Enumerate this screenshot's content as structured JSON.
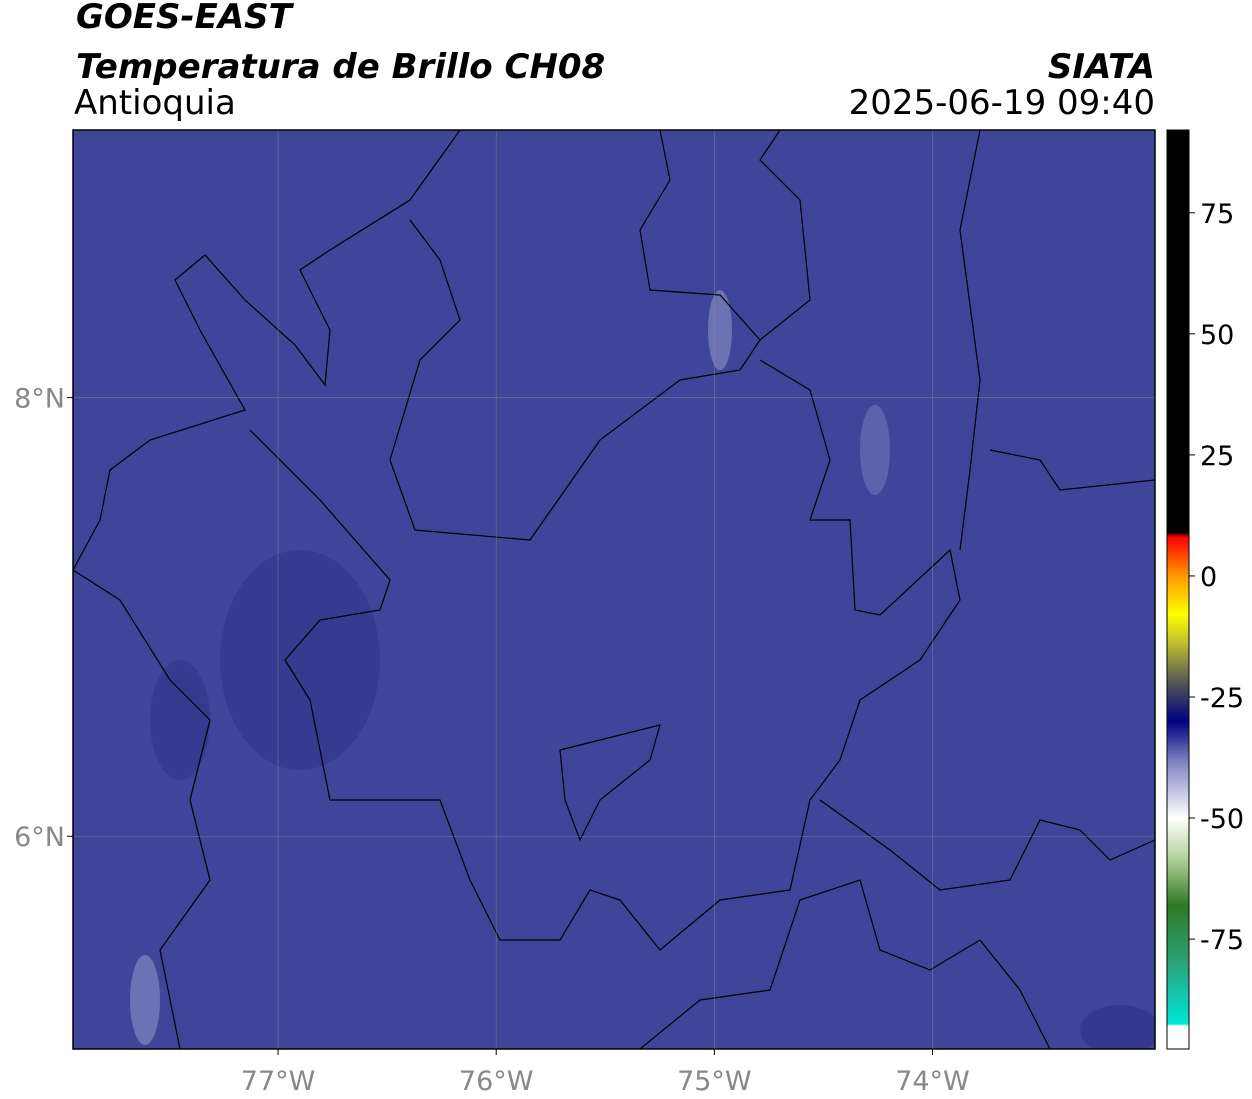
{
  "header": {
    "title": "GOES-EAST",
    "subtitle": "Temperatura de Brillo CH08",
    "region": "Antioquia",
    "source": "SIATA",
    "datetime": "2025-06-19 09:40"
  },
  "map": {
    "lonlim": [
      -77.94,
      -72.98
    ],
    "latlim": [
      5.03,
      9.22
    ],
    "background": "#3f4699",
    "lonticks": [
      {
        "value": -77,
        "label": "77°W"
      },
      {
        "value": -76,
        "label": "76°W"
      },
      {
        "value": -75,
        "label": "75°W"
      },
      {
        "value": -74,
        "label": "74°W"
      }
    ],
    "latticks": [
      {
        "value": 8,
        "label": "8°N"
      },
      {
        "value": 6,
        "label": "6°N"
      }
    ],
    "grid": true
  },
  "colorbar": {
    "lim": [
      -97.7,
      92.1
    ],
    "ticks": [
      75,
      50,
      25,
      0,
      -25,
      -50,
      -75
    ],
    "colormap": [
      {
        "value": -97.7,
        "color": "#ffffff"
      },
      {
        "value": -93,
        "color": "#ffffff"
      },
      {
        "value": -92.5,
        "color": "#00e5d8"
      },
      {
        "value": -80,
        "color": "#2aa37a"
      },
      {
        "value": -68,
        "color": "#2f7a22"
      },
      {
        "value": -58,
        "color": "#b8d4a0"
      },
      {
        "value": -50,
        "color": "#ffffff"
      },
      {
        "value": -38,
        "color": "#7a7fc0"
      },
      {
        "value": -30,
        "color": "#000080"
      },
      {
        "value": -22,
        "color": "#555555"
      },
      {
        "value": -14,
        "color": "#bcbc30"
      },
      {
        "value": -8,
        "color": "#ffff00"
      },
      {
        "value": 0,
        "color": "#ff9900"
      },
      {
        "value": 8,
        "color": "#ff0000"
      },
      {
        "value": 9,
        "color": "#000000"
      },
      {
        "value": 92.1,
        "color": "#000000"
      }
    ]
  }
}
